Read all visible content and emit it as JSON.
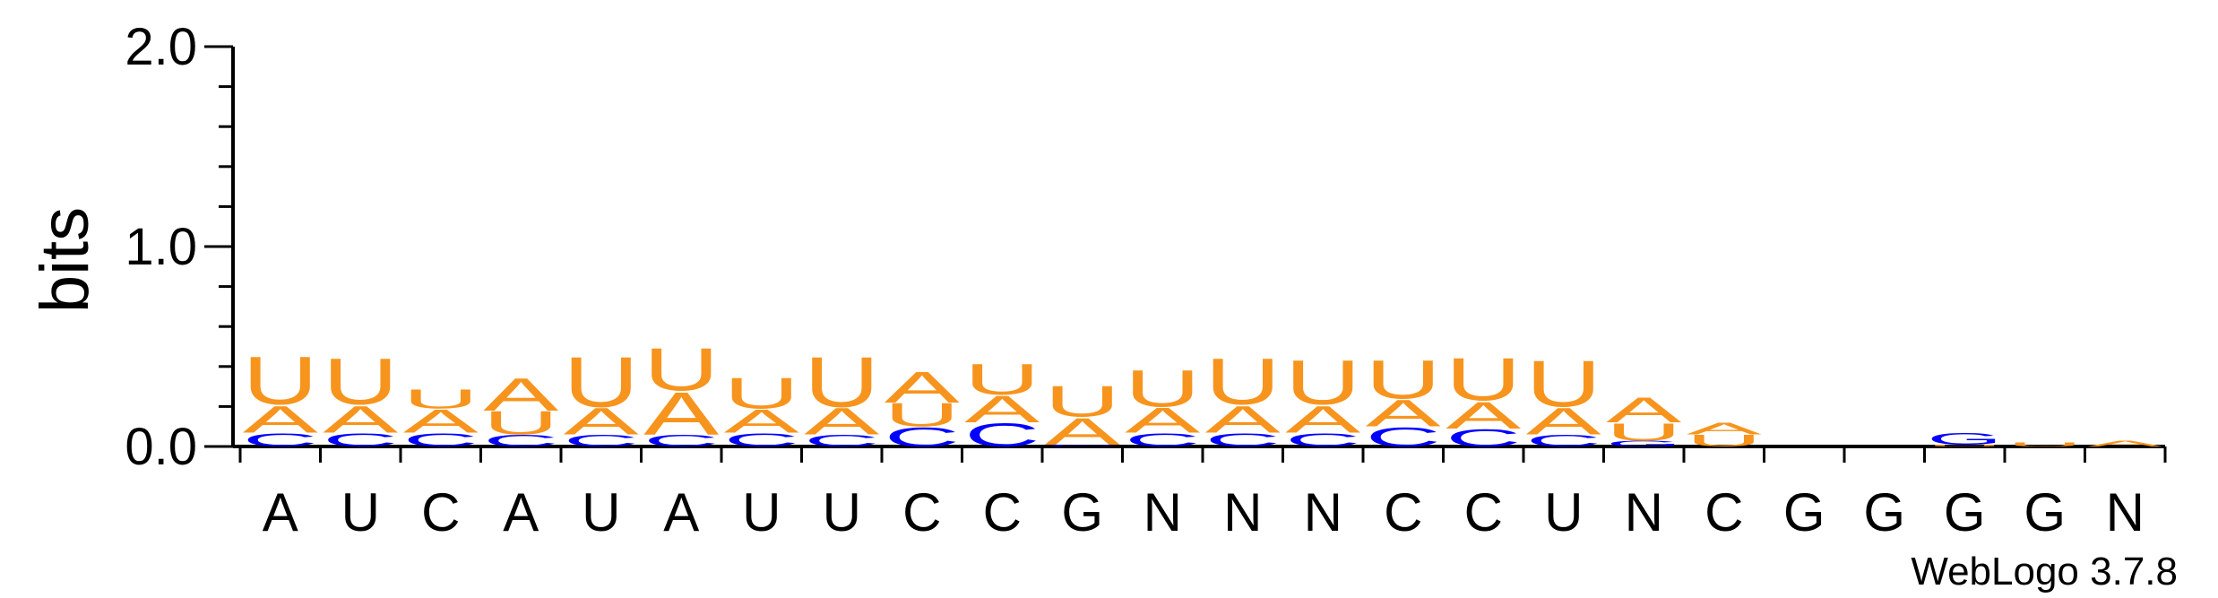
{
  "chart_data": {
    "type": "sequence-logo",
    "ylabel": "bits",
    "ylim": [
      0,
      2.0
    ],
    "yticks": [
      "0.0",
      "1.0",
      "2.0"
    ],
    "credit": "WebLogo 3.7.8",
    "colors": {
      "A": "#f7941d",
      "U": "#f7941d",
      "C": "#0000ff",
      "G": "#0000ff"
    },
    "positions": [
      {
        "label": "A",
        "stack": [
          {
            "letter": "C",
            "bits": 0.07
          },
          {
            "letter": "A",
            "bits": 0.14
          },
          {
            "letter": "U",
            "bits": 0.25
          }
        ]
      },
      {
        "label": "U",
        "stack": [
          {
            "letter": "C",
            "bits": 0.07
          },
          {
            "letter": "A",
            "bits": 0.14
          },
          {
            "letter": "U",
            "bits": 0.24
          }
        ]
      },
      {
        "label": "C",
        "stack": [
          {
            "letter": "C",
            "bits": 0.07
          },
          {
            "letter": "A",
            "bits": 0.12
          },
          {
            "letter": "U",
            "bits": 0.1
          }
        ]
      },
      {
        "label": "A",
        "stack": [
          {
            "letter": "C",
            "bits": 0.06
          },
          {
            "letter": "U",
            "bits": 0.12
          },
          {
            "letter": "A",
            "bits": 0.17
          }
        ]
      },
      {
        "label": "U",
        "stack": [
          {
            "letter": "C",
            "bits": 0.06
          },
          {
            "letter": "A",
            "bits": 0.14
          },
          {
            "letter": "U",
            "bits": 0.26
          }
        ]
      },
      {
        "label": "A",
        "stack": [
          {
            "letter": "C",
            "bits": 0.06
          },
          {
            "letter": "A",
            "bits": 0.22
          },
          {
            "letter": "U",
            "bits": 0.22
          }
        ]
      },
      {
        "label": "U",
        "stack": [
          {
            "letter": "C",
            "bits": 0.07
          },
          {
            "letter": "A",
            "bits": 0.12
          },
          {
            "letter": "U",
            "bits": 0.16
          }
        ]
      },
      {
        "label": "U",
        "stack": [
          {
            "letter": "C",
            "bits": 0.06
          },
          {
            "letter": "A",
            "bits": 0.14
          },
          {
            "letter": "U",
            "bits": 0.26
          }
        ]
      },
      {
        "label": "C",
        "stack": [
          {
            "letter": "C",
            "bits": 0.1
          },
          {
            "letter": "U",
            "bits": 0.12
          },
          {
            "letter": "A",
            "bits": 0.16
          }
        ]
      },
      {
        "label": "C",
        "stack": [
          {
            "letter": "C",
            "bits": 0.12
          },
          {
            "letter": "A",
            "bits": 0.14
          },
          {
            "letter": "U",
            "bits": 0.16
          }
        ]
      },
      {
        "label": "G",
        "stack": [
          {
            "letter": "C",
            "bits": 0.01
          },
          {
            "letter": "A",
            "bits": 0.14
          },
          {
            "letter": "U",
            "bits": 0.16
          }
        ]
      },
      {
        "label": "N",
        "stack": [
          {
            "letter": "C",
            "bits": 0.07
          },
          {
            "letter": "A",
            "bits": 0.13
          },
          {
            "letter": "U",
            "bits": 0.19
          }
        ]
      },
      {
        "label": "N",
        "stack": [
          {
            "letter": "C",
            "bits": 0.07
          },
          {
            "letter": "A",
            "bits": 0.14
          },
          {
            "letter": "U",
            "bits": 0.24
          }
        ]
      },
      {
        "label": "N",
        "stack": [
          {
            "letter": "C",
            "bits": 0.07
          },
          {
            "letter": "A",
            "bits": 0.14
          },
          {
            "letter": "U",
            "bits": 0.23
          }
        ]
      },
      {
        "label": "C",
        "stack": [
          {
            "letter": "C",
            "bits": 0.1
          },
          {
            "letter": "A",
            "bits": 0.14
          },
          {
            "letter": "U",
            "bits": 0.2
          }
        ]
      },
      {
        "label": "C",
        "stack": [
          {
            "letter": "C",
            "bits": 0.09
          },
          {
            "letter": "A",
            "bits": 0.14
          },
          {
            "letter": "U",
            "bits": 0.22
          }
        ]
      },
      {
        "label": "U",
        "stack": [
          {
            "letter": "C",
            "bits": 0.06
          },
          {
            "letter": "A",
            "bits": 0.14
          },
          {
            "letter": "U",
            "bits": 0.24
          }
        ]
      },
      {
        "label": "N",
        "stack": [
          {
            "letter": "G",
            "bits": 0.03
          },
          {
            "letter": "U",
            "bits": 0.09
          },
          {
            "letter": "A",
            "bits": 0.13
          }
        ]
      },
      {
        "label": "C",
        "stack": [
          {
            "letter": "U",
            "bits": 0.06
          },
          {
            "letter": "A",
            "bits": 0.06
          }
        ]
      },
      {
        "label": "G",
        "stack": []
      },
      {
        "label": "G",
        "stack": []
      },
      {
        "label": "G",
        "stack": [
          {
            "letter": "U",
            "bits": 0.01
          },
          {
            "letter": "G",
            "bits": 0.06
          }
        ]
      },
      {
        "label": "G",
        "stack": [
          {
            "letter": "U",
            "bits": 0.02
          }
        ]
      },
      {
        "label": "N",
        "stack": [
          {
            "letter": "A",
            "bits": 0.03
          }
        ]
      }
    ]
  }
}
